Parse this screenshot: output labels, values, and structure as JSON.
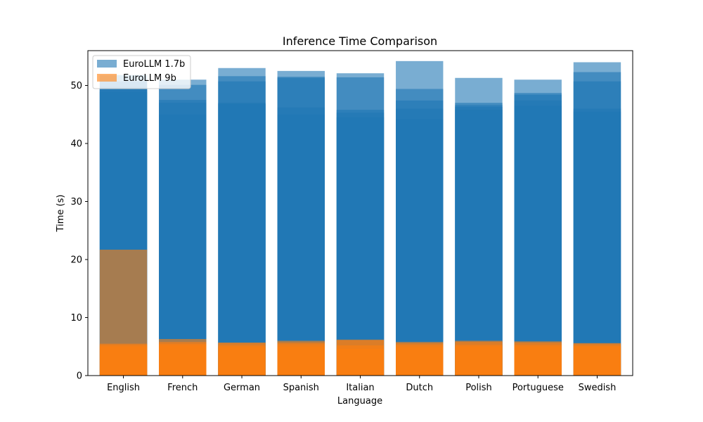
{
  "chart_data": {
    "type": "bar",
    "title": "Inference Time Comparison",
    "xlabel": "Language",
    "ylabel": "Time (s)",
    "ylim": [
      0,
      56
    ],
    "yticks": [
      0,
      10,
      20,
      30,
      40,
      50
    ],
    "categories": [
      "English",
      "French",
      "German",
      "Spanish",
      "Italian",
      "Dutch",
      "Polish",
      "Portuguese",
      "Swedish"
    ],
    "legend_position": "top-left",
    "series": [
      {
        "name": "EuroLLM 1.7b",
        "color": "#1f77b4",
        "alpha": 0.6,
        "runs": [
          [
            51.8,
            50.7,
            49.8,
            49.3,
            48.9
          ],
          [
            51.0,
            50.1,
            47.5,
            47.0,
            45.0
          ],
          [
            53.0,
            51.6,
            50.7,
            47.0,
            46.8
          ],
          [
            52.5,
            51.5,
            51.3,
            46.2,
            45.0
          ],
          [
            52.1,
            51.4,
            45.8,
            45.3,
            44.5
          ],
          [
            54.2,
            49.4,
            47.4,
            46.0,
            44.2
          ],
          [
            51.3,
            47.0,
            46.6,
            46.3,
            45.8
          ],
          [
            51.0,
            48.7,
            48.4,
            47.4,
            46.5
          ],
          [
            54.0,
            52.3,
            50.7,
            46.0,
            45.5
          ]
        ]
      },
      {
        "name": "EuroLLM 9b",
        "color": "#ff7f0e",
        "alpha": 0.6,
        "runs": [
          [
            21.7,
            5.5,
            5.3,
            5.0
          ],
          [
            6.3,
            5.8,
            5.5,
            5.2
          ],
          [
            5.7,
            5.6,
            5.2,
            4.9
          ],
          [
            6.0,
            5.7,
            5.4,
            5.0
          ],
          [
            6.2,
            6.1,
            5.2,
            4.6
          ],
          [
            5.8,
            5.6,
            5.3,
            4.9
          ],
          [
            6.0,
            5.8,
            5.3,
            5.0
          ],
          [
            5.9,
            5.7,
            5.3,
            5.0
          ],
          [
            5.6,
            5.5,
            5.2,
            5.0
          ]
        ]
      }
    ]
  }
}
